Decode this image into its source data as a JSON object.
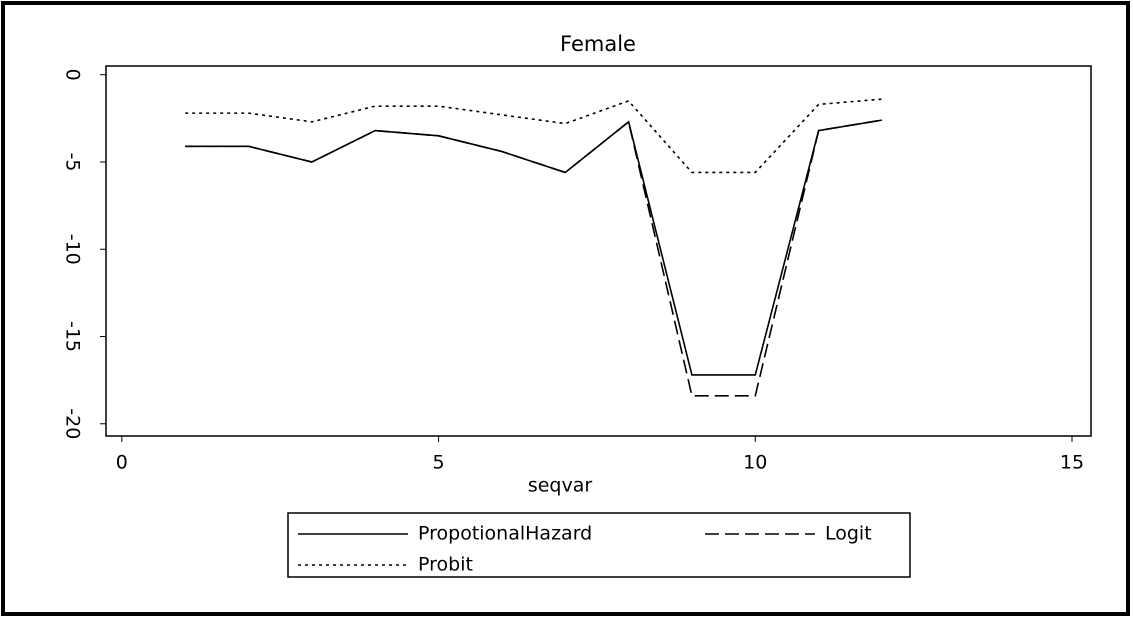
{
  "chart_data": {
    "type": "line",
    "title": "Female",
    "xlabel": "seqvar",
    "x": [
      1,
      2,
      3,
      4,
      5,
      6,
      7,
      8,
      9,
      10,
      11,
      12
    ],
    "series": [
      {
        "name": "PropotionalHazard",
        "color": "#000000",
        "style": "solid",
        "values": [
          -4.1,
          -4.1,
          -5,
          -3.2,
          -3.5,
          -4.4,
          -5.6,
          -2.7,
          -17.2,
          -17.2,
          -3.2,
          -2.6
        ]
      },
      {
        "name": "Logit",
        "color": "#000000",
        "style": "dashed",
        "values": [
          -4.1,
          -4.1,
          -5,
          -3.2,
          -3.5,
          -4.4,
          -5.6,
          -2.7,
          -18.4,
          -18.4,
          -3.2,
          -2.6
        ]
      },
      {
        "name": "Probit",
        "color": "#000000",
        "style": "dotted",
        "values": [
          -2.2,
          -2.2,
          -2.7,
          -1.8,
          -1.8,
          -2.3,
          -2.8,
          -1.5,
          -5.6,
          -5.6,
          -1.7,
          -1.4
        ]
      }
    ],
    "xlim": [
      -0.25,
      15.3
    ],
    "xticks": [
      0,
      5,
      10,
      15
    ],
    "ylim": [
      -20.7,
      0.5
    ],
    "yticks": [
      0,
      -5,
      -10,
      -15,
      -20
    ],
    "legend": "bottom"
  }
}
